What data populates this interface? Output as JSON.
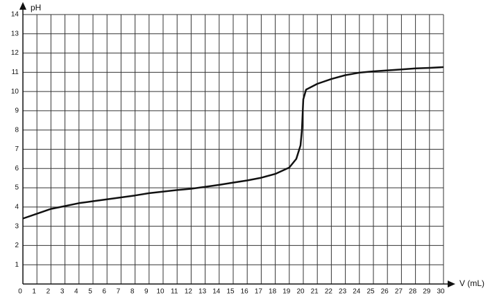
{
  "chart_data": {
    "type": "line",
    "x_label": "V (mL)",
    "y_label": "pH",
    "x": [
      0,
      1,
      2,
      3,
      4,
      5,
      6,
      7,
      8,
      9,
      10,
      11,
      12,
      13,
      14,
      15,
      16,
      17,
      18,
      19,
      19.5,
      19.8,
      19.9,
      20,
      20.2,
      21,
      22,
      23,
      24,
      25,
      26,
      27,
      28,
      29,
      30
    ],
    "series": [
      {
        "color": "#111111",
        "values": [
          3.4,
          3.65,
          3.9,
          4.05,
          4.2,
          4.3,
          4.4,
          4.5,
          4.6,
          4.72,
          4.8,
          4.88,
          4.95,
          5.05,
          5.15,
          5.27,
          5.38,
          5.52,
          5.72,
          6.05,
          6.5,
          7.2,
          8,
          9.6,
          10.1,
          10.4,
          10.65,
          10.85,
          10.98,
          11.05,
          11.1,
          11.15,
          11.2,
          11.23,
          11.27
        ]
      }
    ],
    "xlim": [
      0,
      30
    ],
    "ylim": [
      0,
      14
    ],
    "xticks": [
      0,
      1,
      2,
      3,
      4,
      5,
      6,
      7,
      8,
      9,
      10,
      11,
      12,
      13,
      14,
      15,
      16,
      17,
      18,
      19,
      20,
      21,
      22,
      23,
      24,
      25,
      26,
      27,
      28,
      29,
      30
    ],
    "yticks": [
      1,
      2,
      3,
      4,
      5,
      6,
      7,
      8,
      9,
      10,
      11,
      12,
      13,
      14
    ],
    "grid": true
  }
}
